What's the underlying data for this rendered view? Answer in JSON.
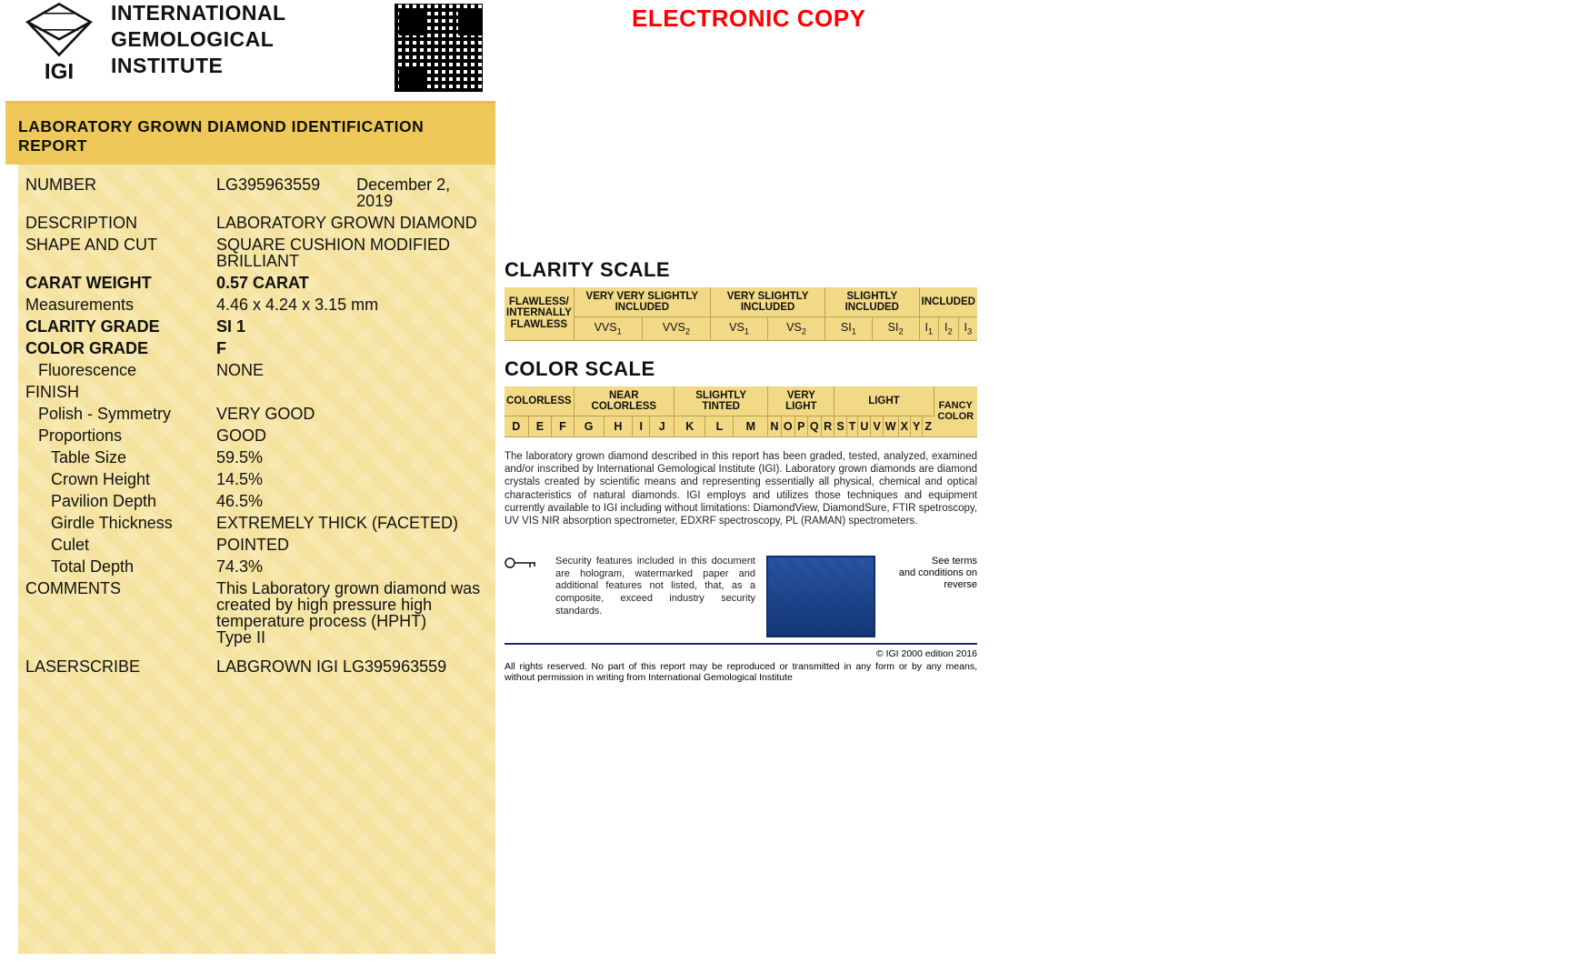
{
  "header": {
    "org_line1": "INTERNATIONAL",
    "org_line2": "GEMOLOGICAL",
    "org_line3": "INSTITUTE",
    "electronic_copy": "ELECTRONIC COPY"
  },
  "title_bar": "LABORATORY GROWN DIAMOND IDENTIFICATION REPORT",
  "fields": {
    "number_label": "NUMBER",
    "number_value": "LG395963559",
    "date": "December 2, 2019",
    "description_label": "DESCRIPTION",
    "description_value": "LABORATORY GROWN DIAMOND",
    "shape_label": "SHAPE AND CUT",
    "shape_value": "SQUARE CUSHION MODIFIED BRILLIANT",
    "carat_label": "CARAT WEIGHT",
    "carat_value": "0.57 CARAT",
    "measurements_label": "Measurements",
    "measurements_value": "4.46 x 4.24 x 3.15 mm",
    "clarity_label": "CLARITY GRADE",
    "clarity_value": "SI 1",
    "color_label": "COLOR GRADE",
    "color_value": "F",
    "fluorescence_label": "Fluorescence",
    "fluorescence_value": "NONE",
    "finish_label": "FINISH",
    "polish_label": "Polish - Symmetry",
    "polish_value": "VERY GOOD",
    "proportions_label": "Proportions",
    "proportions_value": "GOOD",
    "table_label": "Table Size",
    "table_value": "59.5%",
    "crown_label": "Crown Height",
    "crown_value": "14.5%",
    "pavilion_label": "Pavilion Depth",
    "pavilion_value": "46.5%",
    "girdle_label": "Girdle Thickness",
    "girdle_value": "EXTREMELY THICK (FACETED)",
    "culet_label": "Culet",
    "culet_value": "POINTED",
    "depth_label": "Total Depth",
    "depth_value": "74.3%",
    "comments_label": "COMMENTS",
    "comments_value": "This Laboratory grown diamond was created by high pressure high temperature process (HPHT)\nType II",
    "laser_label": "LASERSCRIBE",
    "laser_value": "LABGROWN IGI LG395963559"
  },
  "clarity_scale": {
    "title": "CLARITY SCALE",
    "left_header": "FLAWLESS/ INTERNALLY FLAWLESS",
    "groups": [
      "VERY VERY SLIGHTLY INCLUDED",
      "VERY SLIGHTLY INCLUDED",
      "SLIGHTLY INCLUDED",
      "INCLUDED"
    ],
    "grades": [
      "VVS₁",
      "VVS₂",
      "VS₁",
      "VS₂",
      "SI₁",
      "SI₂",
      "I₁",
      "I₂",
      "I₃"
    ]
  },
  "color_scale": {
    "title": "COLOR SCALE",
    "groups": [
      "COLORLESS",
      "NEAR COLORLESS",
      "SLIGHTLY TINTED",
      "VERY LIGHT",
      "LIGHT"
    ],
    "fancy": "FANCY COLOR",
    "letters": [
      "D",
      "E",
      "F",
      "G",
      "H",
      "I",
      "J",
      "K",
      "L",
      "M",
      "N",
      "O",
      "P",
      "Q",
      "R",
      "S",
      "T",
      "U",
      "V",
      "W",
      "X",
      "Y",
      "Z"
    ]
  },
  "disclaimer": "The laboratory grown diamond described in this report has been graded, tested, analyzed, examined and/or inscribed by International Gemological Institute (IGI). Laboratory grown diamonds are diamond crystals created by scientific means and representing essentially all physical, chemical and optical characteristics of natural diamonds. IGI employs and utilizes those techniques and equipment currently available to IGI including without limitations: DiamondView, DiamondSure, FTIR spetroscopy, UV VIS NIR absorption spectrometer, EDXRF spectroscopy, PL (RAMAN) spectrometers.",
  "security": {
    "text": "Security features included in this document are hologram, watermarked paper and additional features not listed, that, as a composite, exceed industry security standards.",
    "terms1": "See terms",
    "terms2": "and conditions on reverse",
    "copyright": "© IGI 2000 edition 2016",
    "rights": "All rights reserved. No part of this report may be reproduced or transmitted in any form or by any means, without permission in writing from International Gemological Institute"
  },
  "colors": {
    "accent": "#eec95a",
    "scale_bg": "#f2d985",
    "border": "#bfa24e",
    "red": "#ff0000",
    "navy": "#1a2a6c"
  }
}
